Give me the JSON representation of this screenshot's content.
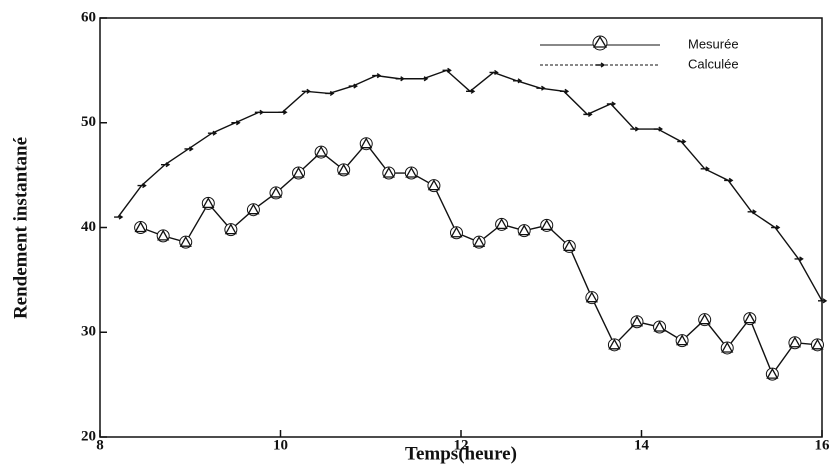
{
  "chart_data": {
    "type": "line",
    "x_label": "Temps(heure)",
    "y_label": "Rendement instantané",
    "xlim": [
      8,
      16
    ],
    "xticks": [
      8,
      10,
      12,
      14,
      16
    ],
    "ylim": [
      20,
      60
    ],
    "yticks": [
      20,
      30,
      40,
      50,
      60
    ],
    "legend": "top-right",
    "series": [
      {
        "name": "Mesurée",
        "color": "#111111",
        "marker": "triangle",
        "x": [
          8.45,
          8.7,
          8.95,
          9.2,
          9.45,
          9.7,
          9.95,
          10.2,
          10.45,
          10.7,
          10.95,
          11.2,
          11.45,
          11.7,
          11.95,
          12.2,
          12.45,
          12.7,
          12.95,
          13.2,
          13.45,
          13.7,
          13.95,
          14.2,
          14.45,
          14.7,
          14.95,
          15.2,
          15.45,
          15.7,
          15.95
        ],
        "values": [
          40,
          39.2,
          38.6,
          42.3,
          39.8,
          41.7,
          43.3,
          45.2,
          47.2,
          45.5,
          48,
          45.2,
          45.2,
          44,
          39.5,
          38.6,
          40.3,
          39.7,
          40.2,
          38.2,
          33.3,
          28.8,
          31,
          30.5,
          29.2,
          31.2,
          28.5,
          31.3,
          26,
          29,
          28.8
        ]
      },
      {
        "name": "Calculée",
        "color": "#111111",
        "marker": "dot",
        "x": [
          8.2,
          8.46,
          8.72,
          8.98,
          9.24,
          9.5,
          9.76,
          10.02,
          10.28,
          10.54,
          10.8,
          11.06,
          11.32,
          11.58,
          11.84,
          12.1,
          12.36,
          12.62,
          12.88,
          13.14,
          13.4,
          13.66,
          13.92,
          14.18,
          14.44,
          14.7,
          14.96,
          15.22,
          15.48,
          15.74,
          16.0
        ],
        "values": [
          41,
          44,
          46,
          47.5,
          49,
          50,
          51,
          51,
          53,
          52.8,
          53.5,
          54.5,
          54.2,
          54.2,
          55,
          53,
          54.8,
          54,
          53.3,
          53,
          50.8,
          51.8,
          49.4,
          49.4,
          48.2,
          45.6,
          44.5,
          41.5,
          40,
          37,
          33
        ]
      }
    ]
  }
}
